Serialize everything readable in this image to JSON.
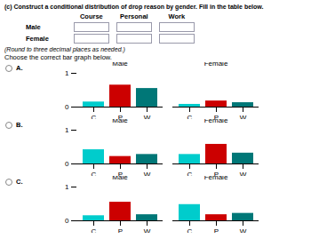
{
  "chart_data": [
    {
      "type": "bar",
      "title": "A.",
      "annotations": [
        "(c) Construct a conditional distribution of drop reason by gender. Fill in the table below.",
        "Course",
        "Personal",
        "Work",
        "Male",
        "Female",
        "(Round to three decimal places as needed.)",
        "Choose the correct bar graph below."
      ],
      "categories": [
        "C",
        "P",
        "W"
      ],
      "colors": [
        "#00CCCC",
        "#CC0000",
        "#007777"
      ],
      "series": [
        {
          "name": "Male",
          "values": [
            0.15,
            0.65,
            0.55
          ]
        },
        {
          "name": "Female",
          "values": [
            0.08,
            0.18,
            0.13
          ]
        }
      ],
      "ylim": [
        0,
        1
      ],
      "yticks": [
        0,
        1
      ]
    },
    {
      "type": "bar",
      "title": "B.",
      "categories": [
        "C",
        "P",
        "W"
      ],
      "colors": [
        "#00CCCC",
        "#CC0000",
        "#007777"
      ],
      "series": [
        {
          "name": "Male",
          "values": [
            0.42,
            0.22,
            0.28
          ]
        },
        {
          "name": "Female",
          "values": [
            0.28,
            0.58,
            0.32
          ]
        }
      ],
      "ylim": [
        0,
        1
      ],
      "yticks": [
        0,
        1
      ]
    },
    {
      "type": "bar",
      "title": "C.",
      "categories": [
        "C",
        "P",
        "W"
      ],
      "colors": [
        "#00CCCC",
        "#CC0000",
        "#007777"
      ],
      "series": [
        {
          "name": "Male",
          "values": [
            0.15,
            0.55,
            0.18
          ]
        },
        {
          "name": "Female",
          "values": [
            0.48,
            0.18,
            0.22
          ]
        }
      ],
      "ylim": [
        0,
        1
      ],
      "yticks": [
        0,
        1
      ]
    }
  ]
}
